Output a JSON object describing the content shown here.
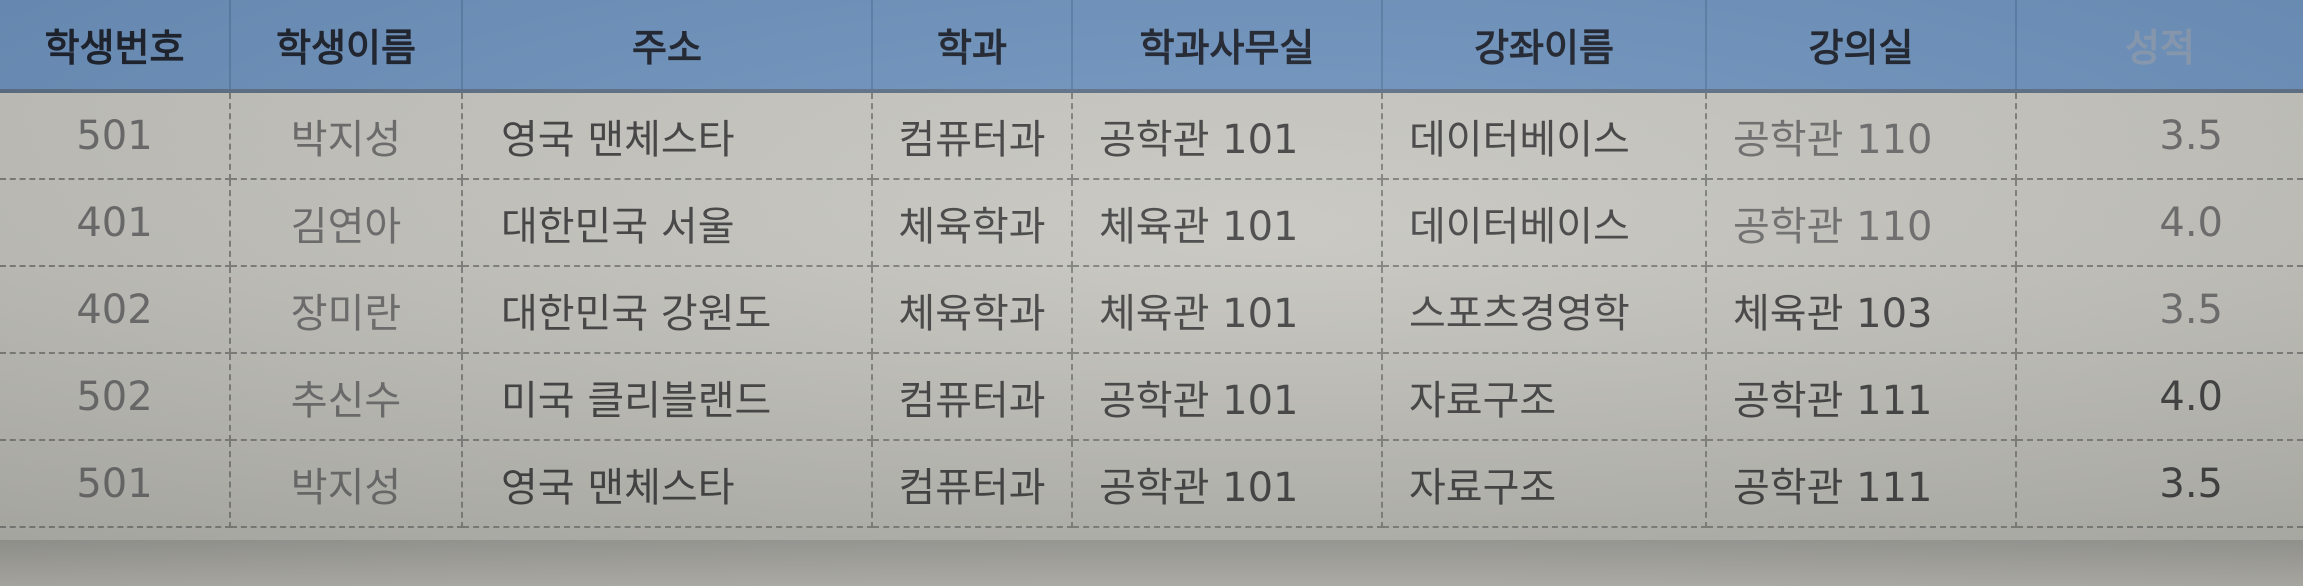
{
  "table": {
    "headers": [
      "학생번호",
      "학생이름",
      "주소",
      "학과",
      "학과사무실",
      "강좌이름",
      "강의실",
      "성적"
    ],
    "rows": [
      [
        "501",
        "박지성",
        "영국 맨체스타",
        "컴퓨터과",
        "공학관 101",
        "데이터베이스",
        "공학관 110",
        "3.5"
      ],
      [
        "401",
        "김연아",
        "대한민국 서울",
        "체육학과",
        "체육관 101",
        "데이터베이스",
        "공학관 110",
        "4.0"
      ],
      [
        "402",
        "장미란",
        "대한민국 강원도",
        "체육학과",
        "체육관 101",
        "스포츠경영학",
        "체육관 103",
        "3.5"
      ],
      [
        "502",
        "추신수",
        "미국 클리블랜드",
        "컴퓨터과",
        "공학관 101",
        "자료구조",
        "공학관 111",
        "4.0"
      ],
      [
        "501",
        "박지성",
        "영국 맨체스타",
        "컴퓨터과",
        "공학관 101",
        "자료구조",
        "공학관 111",
        "3.5"
      ]
    ]
  },
  "colors": {
    "header_background": "#6d93bf",
    "header_text": "#1a1f2a",
    "body_text": "#3e3e3e",
    "paper": "#c6c5bf"
  }
}
